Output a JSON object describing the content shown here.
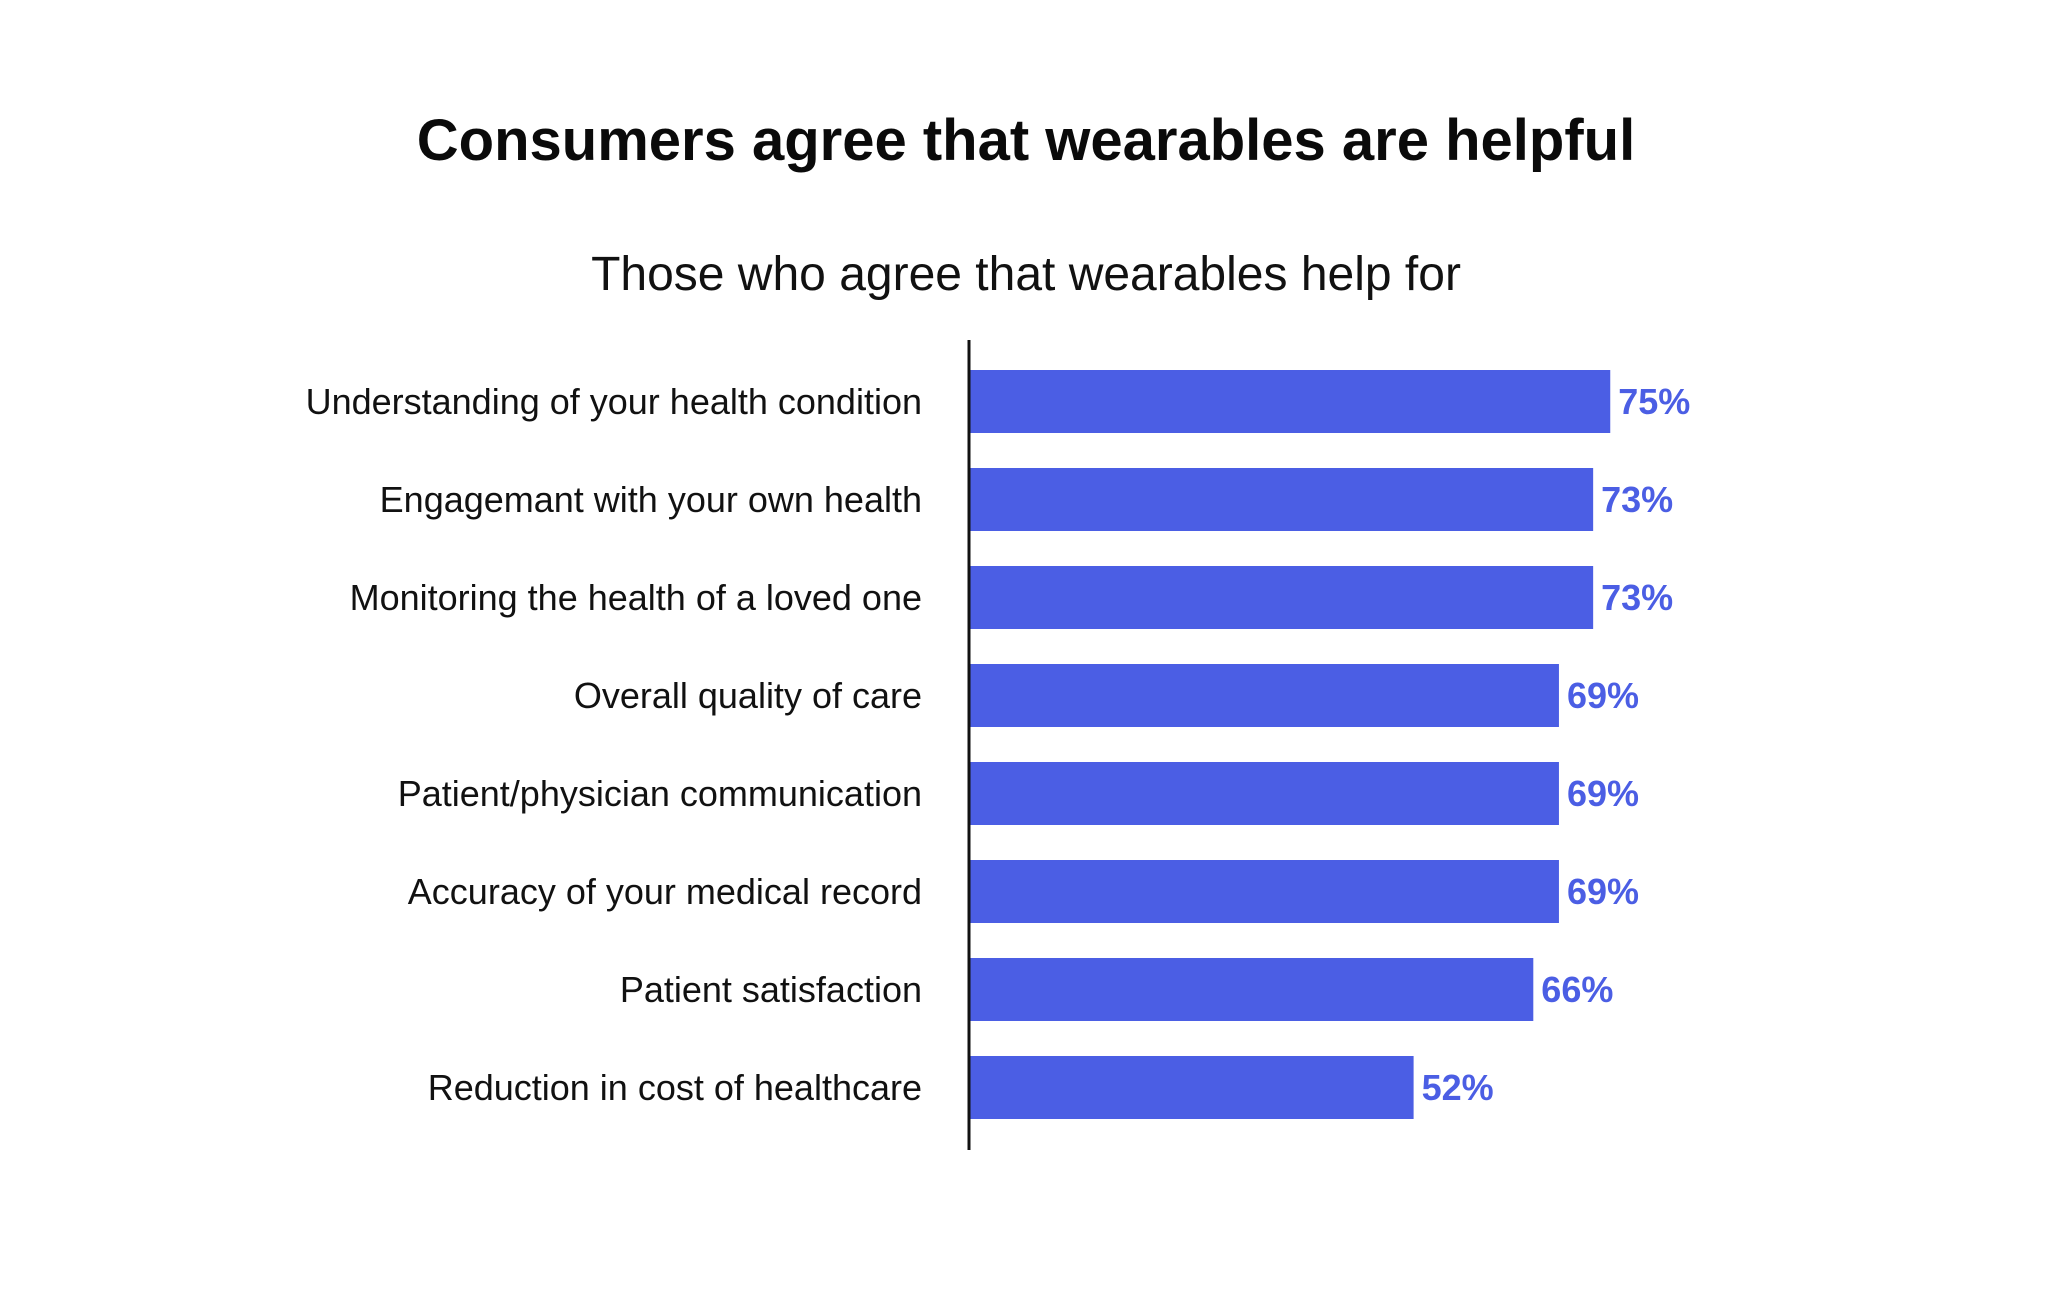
{
  "colors": {
    "bar": "#4B5EE4",
    "value_label": "#4B5EE4",
    "axis": "#111111",
    "text": "#111111"
  },
  "chart_data": {
    "type": "bar",
    "orientation": "horizontal",
    "title": "Consumers agree that wearables are helpful",
    "subtitle": "Those who agree that wearables help for",
    "categories": [
      "Understanding of your health condition",
      "Engagemant with your own health",
      "Monitoring the health of a loved one",
      "Overall quality of care",
      "Patient/physician communication",
      "Accuracy of your medical record",
      "Patient satisfaction",
      "Reduction in cost of healthcare"
    ],
    "values": [
      75,
      73,
      73,
      69,
      69,
      69,
      66,
      52
    ],
    "value_labels": [
      "75%",
      "73%",
      "73%",
      "69%",
      "69%",
      "69%",
      "66%",
      "52%"
    ],
    "xlim": [
      0,
      100
    ],
    "unit": "%",
    "grid": false,
    "legend": "none"
  }
}
